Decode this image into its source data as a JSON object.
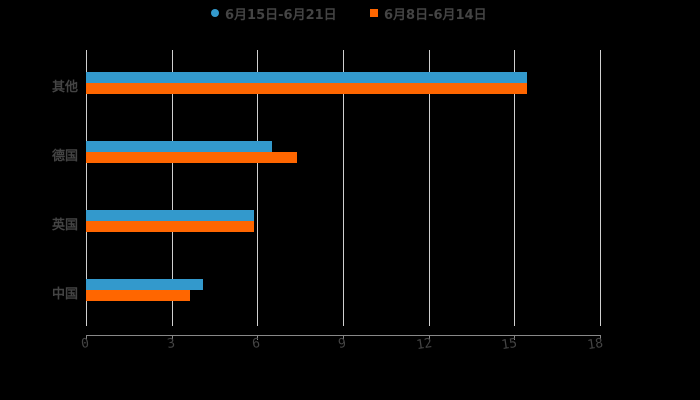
{
  "legend": [
    {
      "label": "6月15日-6月21日",
      "color": "#3399cc",
      "shape": "circle"
    },
    {
      "label": "6月8日-6月14日",
      "color": "#ff6600",
      "shape": "square"
    }
  ],
  "x_ticks": [
    "0",
    "3",
    "6",
    "9",
    "12",
    "15",
    "18"
  ],
  "categories": [
    "其他",
    "德国",
    "英国",
    "中国"
  ],
  "chart_data": {
    "type": "bar",
    "orientation": "horizontal",
    "title": "",
    "xlabel": "",
    "ylabel": "",
    "categories": [
      "其他",
      "德国",
      "英国",
      "中国"
    ],
    "series": [
      {
        "name": "6月15日-6月21日",
        "color": "#3399cc",
        "values": [
          15.45,
          6.5,
          5.9,
          4.1
        ]
      },
      {
        "name": "6月8日-6月14日",
        "color": "#ff6600",
        "values": [
          15.45,
          7.4,
          5.9,
          3.65
        ]
      }
    ],
    "xlim": [
      0,
      18
    ],
    "x_ticks": [
      0,
      3,
      6,
      9,
      12,
      15,
      18
    ],
    "grid": "vertical",
    "legend_position": "top"
  }
}
